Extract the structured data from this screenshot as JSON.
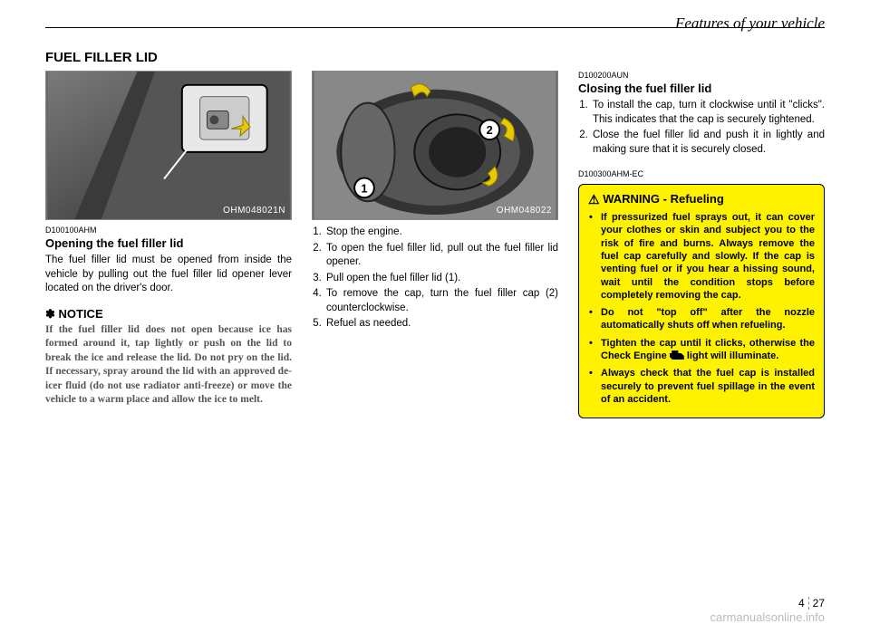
{
  "header": {
    "section_title": "Features of your vehicle"
  },
  "main_heading": "FUEL FILLER LID",
  "col1": {
    "figure_label": "OHM048021N",
    "code_ref": "D100100AHM",
    "subheading": "Opening the fuel filler lid",
    "body_text": "The fuel filler lid must be opened from inside the vehicle by pulling out the fuel filler lid opener lever located on the driver's door.",
    "notice_heading": "✽ NOTICE",
    "notice_text": "If the fuel filler lid does not open because ice has formed around it, tap lightly or push on the lid to break the ice and release the lid. Do not pry on the lid. If necessary, spray around the lid with an approved de-icer fluid (do not use radiator anti-freeze) or move the vehicle to a warm place and allow the ice to melt."
  },
  "col2": {
    "figure_label": "OHM048022",
    "steps": [
      "Stop the engine.",
      "To open the fuel filler lid, pull out the fuel filler lid opener.",
      "Pull open the fuel filler lid (1).",
      "To remove the cap, turn the fuel filler cap (2) counterclockwise.",
      "Refuel as needed."
    ]
  },
  "col3": {
    "code_ref1": "D100200AUN",
    "subheading": "Closing the fuel filler lid",
    "steps": [
      "To install the cap, turn it clockwise until it \"clicks\". This indicates that the cap is securely tightened.",
      "Close the fuel filler lid and push it in lightly and making sure that it is securely closed."
    ],
    "code_ref2": "D100300AHM-EC",
    "warning_title": "WARNING - Refueling",
    "warning_items": [
      "If pressurized fuel sprays out, it can cover your clothes or skin and subject you to the risk of fire and burns. Always remove the fuel cap carefully and slowly. If the cap is venting fuel or if you hear a hissing sound, wait until the condition stops before completely removing the cap.",
      "Do not \"top off\" after the nozzle automatically shuts off when refueling.",
      "Tighten the cap until it clicks, otherwise the Check Engine |ICON| light will illuminate.",
      "Always check that the fuel cap is installed securely to prevent fuel spillage in the event of an accident."
    ]
  },
  "page_number": {
    "chapter": "4",
    "page": "27"
  },
  "watermark": "carmanualsonline.info",
  "colors": {
    "warning_bg": "#fff200",
    "figure_bg": "#6a6a6a",
    "notice_text": "#555555"
  }
}
